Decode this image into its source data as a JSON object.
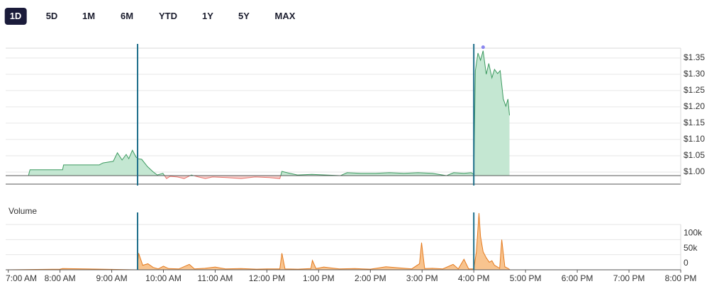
{
  "tabs": {
    "items": [
      "1D",
      "5D",
      "1M",
      "6M",
      "YTD",
      "1Y",
      "5Y",
      "MAX"
    ],
    "selected": 0
  },
  "chart_data": [
    {
      "type": "price-area",
      "x": [
        6.95,
        7.39,
        7.42,
        8.05,
        8.07,
        8.76,
        8.83,
        9.03,
        9.11,
        9.2,
        9.28,
        9.33,
        9.4,
        9.47,
        9.51,
        9.58,
        9.69,
        9.79,
        9.88,
        9.99,
        10.06,
        10.13,
        10.27,
        10.4,
        10.54,
        10.68,
        10.81,
        10.95,
        11.22,
        11.5,
        11.77,
        12.05,
        12.25,
        12.29,
        12.39,
        12.59,
        12.87,
        13.14,
        13.42,
        13.55,
        13.83,
        14.1,
        14.37,
        14.65,
        14.92,
        15.2,
        15.47,
        15.61,
        15.81,
        15.95,
        16.0,
        16.03,
        16.08,
        16.13,
        16.18,
        16.24,
        16.29,
        16.35,
        16.4,
        16.46,
        16.51,
        16.57,
        16.62,
        16.66,
        16.69
      ],
      "values": [
        0.989,
        0.989,
        1.007,
        1.007,
        1.022,
        1.022,
        1.028,
        1.033,
        1.059,
        1.037,
        1.054,
        1.041,
        1.067,
        1.046,
        1.041,
        1.039,
        1.017,
        1.002,
        0.991,
        0.996,
        0.98,
        0.987,
        0.985,
        0.98,
        0.991,
        0.985,
        0.98,
        0.985,
        0.983,
        0.98,
        0.985,
        0.983,
        0.98,
        1.002,
        0.998,
        0.991,
        0.993,
        0.991,
        0.989,
        0.998,
        0.996,
        0.996,
        0.998,
        0.996,
        0.998,
        0.996,
        0.989,
        0.998,
        0.996,
        0.998,
        0.993,
        1.311,
        1.365,
        1.343,
        1.372,
        1.3,
        1.333,
        1.289,
        1.315,
        1.302,
        1.311,
        1.224,
        1.202,
        1.224,
        1.174
      ],
      "baseline": 0.989,
      "xlim": [
        6.95,
        20
      ],
      "ylim": [
        0.963,
        1.38
      ],
      "yticks": [
        {
          "value": 1.0,
          "label": "$1.00"
        },
        {
          "value": 1.05,
          "label": "$1.05"
        },
        {
          "value": 1.1,
          "label": "$1.10"
        },
        {
          "value": 1.15,
          "label": "$1.15"
        },
        {
          "value": 1.2,
          "label": "$1.20"
        },
        {
          "value": 1.25,
          "label": "$1.25"
        },
        {
          "value": 1.3,
          "label": "$1.30"
        },
        {
          "value": 1.35,
          "label": "$1.35"
        }
      ],
      "session_lines": [
        9.5,
        16
      ],
      "color": "#3d9a60",
      "fill": "#c4e7d2",
      "negative_color": "#e8716a",
      "negative_fill": "#f7d3d0",
      "high_color": "#8a86ef",
      "grid": true
    },
    {
      "type": "volume-area",
      "title": "Volume",
      "x": [
        6.95,
        8.0,
        8.05,
        9.49,
        9.52,
        9.6,
        9.7,
        9.8,
        9.9,
        10.0,
        10.1,
        10.3,
        10.5,
        10.6,
        10.8,
        11.0,
        11.2,
        11.5,
        11.8,
        12.0,
        12.25,
        12.29,
        12.35,
        12.6,
        12.85,
        12.88,
        12.95,
        13.1,
        13.4,
        13.7,
        14.0,
        14.3,
        14.6,
        14.8,
        14.95,
        14.99,
        15.05,
        15.2,
        15.4,
        15.6,
        15.7,
        15.81,
        15.9,
        16.0,
        16.05,
        16.1,
        16.13,
        16.18,
        16.24,
        16.3,
        16.35,
        16.4,
        16.45,
        16.5,
        16.54,
        16.6,
        16.66,
        16.7
      ],
      "values": [
        0,
        2000,
        4000,
        0,
        55000,
        15000,
        20000,
        8000,
        3000,
        12000,
        4000,
        3000,
        18000,
        3000,
        5000,
        9000,
        3000,
        4000,
        2000,
        3000,
        3000,
        55000,
        3000,
        2000,
        4000,
        31000,
        4000,
        9000,
        3000,
        4000,
        2000,
        10000,
        6000,
        3000,
        20000,
        90000,
        4000,
        5000,
        3000,
        18000,
        3000,
        35000,
        3000,
        3000,
        60000,
        188000,
        110000,
        60000,
        40000,
        25000,
        30000,
        15000,
        10000,
        5000,
        100000,
        10000,
        5000,
        0
      ],
      "xlim": [
        6.95,
        20
      ],
      "ylim": [
        0,
        190000
      ],
      "ygrid": [
        0,
        50000,
        100000,
        150000
      ],
      "yticks": [
        {
          "value": 0,
          "label": "0"
        },
        {
          "value": 50000,
          "label": "50k"
        },
        {
          "value": 100000,
          "label": "100k"
        }
      ],
      "xticks": [
        {
          "value": 7,
          "label": "7:00 AM"
        },
        {
          "value": 8,
          "label": "8:00 AM"
        },
        {
          "value": 9,
          "label": "9:00 AM"
        },
        {
          "value": 10,
          "label": "10:00 AM"
        },
        {
          "value": 11,
          "label": "11:00 AM"
        },
        {
          "value": 12,
          "label": "12:00 PM"
        },
        {
          "value": 13,
          "label": "1:00 PM"
        },
        {
          "value": 14,
          "label": "2:00 PM"
        },
        {
          "value": 15,
          "label": "3:00 PM"
        },
        {
          "value": 16,
          "label": "4:00 PM"
        },
        {
          "value": 17,
          "label": "5:00 PM"
        },
        {
          "value": 18,
          "label": "6:00 PM"
        },
        {
          "value": 19,
          "label": "7:00 PM"
        },
        {
          "value": 20,
          "label": "8:00 PM"
        }
      ],
      "session_lines": [
        9.5,
        16
      ],
      "color": "#e47a1e",
      "fill": "#f8c48f",
      "grid": true
    }
  ]
}
